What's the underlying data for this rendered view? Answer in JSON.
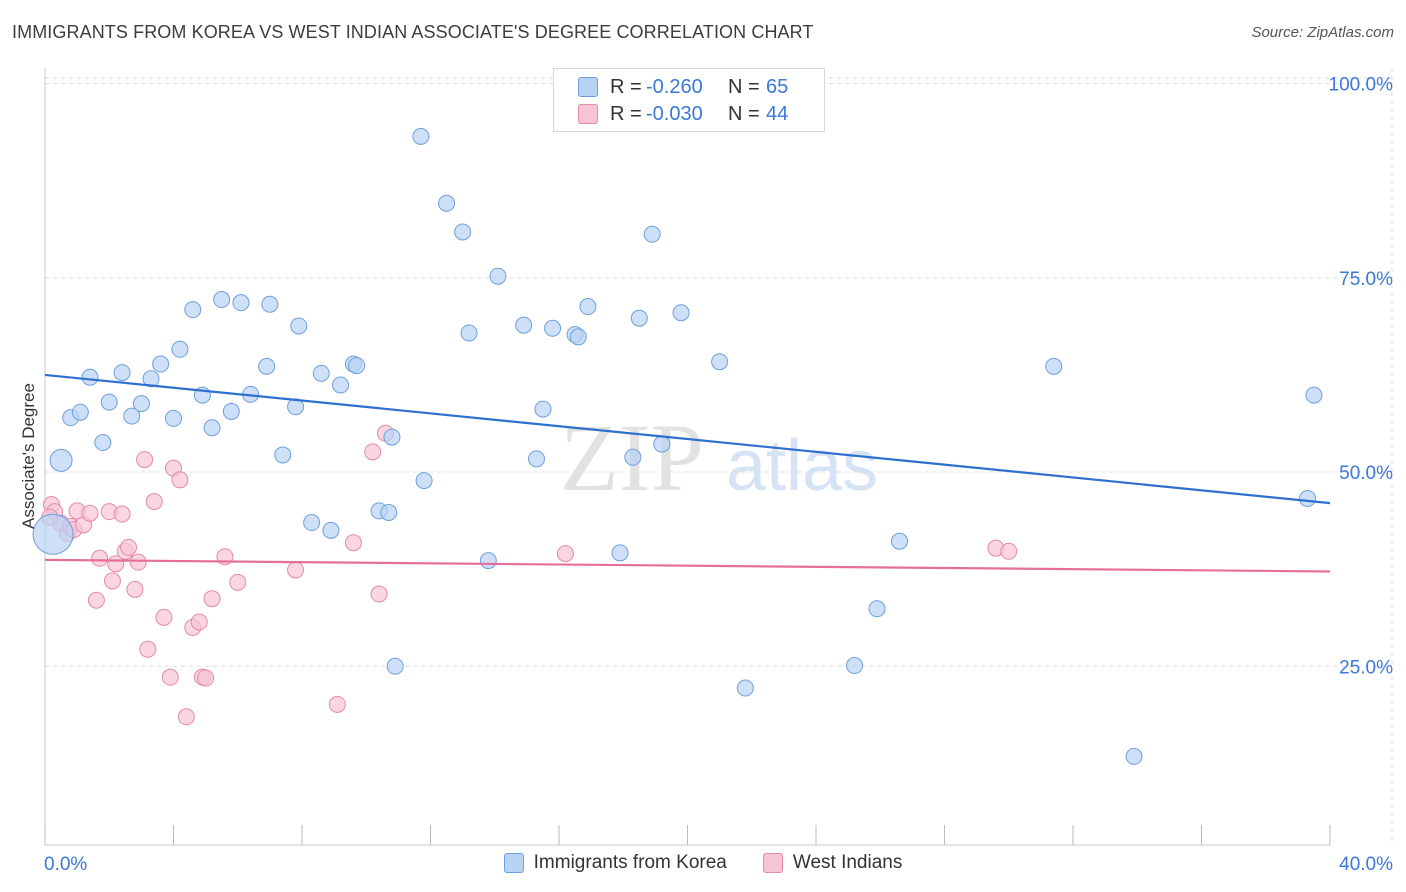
{
  "title": "IMMIGRANTS FROM KOREA VS WEST INDIAN ASSOCIATE'S DEGREE CORRELATION CHART",
  "source": "Source: ZipAtlas.com",
  "watermark": {
    "zip": "ZIP",
    "atlas": "atlas"
  },
  "legend_top": {
    "rows": [
      {
        "r_label": "R =",
        "r_value": "-0.260",
        "n_label": "N =",
        "n_value": "65"
      },
      {
        "r_label": "R =",
        "r_value": "-0.030",
        "n_label": "N =",
        "n_value": "44"
      }
    ]
  },
  "legend_bottom": {
    "series1": "Immigrants from Korea",
    "series2": "West Indians"
  },
  "colors": {
    "blue_fill": "#b8d3f3",
    "blue_stroke": "#6f9fdc",
    "blue_line": "#2f6fd0",
    "pink_fill": "#f6c4d5",
    "pink_stroke": "#e58aa9",
    "pink_line": "#e56f98",
    "axis_text": "#3b78d8",
    "grid": "#dddddd"
  },
  "chart_data": {
    "type": "scatter",
    "title": "IMMIGRANTS FROM KOREA VS WEST INDIAN ASSOCIATE'S DEGREE CORRELATION CHART",
    "xlabel": "",
    "ylabel": "Associate's Degree",
    "xlim": [
      0,
      40
    ],
    "ylim": [
      2,
      102
    ],
    "x_tick_labels": [
      "0.0%",
      "40.0%"
    ],
    "y_ticks": [
      25,
      50,
      75,
      100
    ],
    "y_tick_labels": [
      "25.0%",
      "50.0%",
      "75.0%",
      "100.0%"
    ],
    "grid": true,
    "series": [
      {
        "name": "Immigrants from Korea",
        "R": -0.26,
        "N": 65,
        "trend": {
          "x": [
            0,
            40
          ],
          "y": [
            62.5,
            46.0
          ]
        },
        "points": [
          {
            "x": 0.25,
            "y": 42.0,
            "big": 2
          },
          {
            "x": 0.5,
            "y": 51.5,
            "big": 1
          },
          {
            "x": 0.8,
            "y": 57.0
          },
          {
            "x": 1.1,
            "y": 57.7
          },
          {
            "x": 1.4,
            "y": 62.2
          },
          {
            "x": 1.8,
            "y": 53.8
          },
          {
            "x": 2.0,
            "y": 59.0
          },
          {
            "x": 2.4,
            "y": 62.8
          },
          {
            "x": 2.7,
            "y": 57.2
          },
          {
            "x": 3.0,
            "y": 58.8
          },
          {
            "x": 3.3,
            "y": 62.0
          },
          {
            "x": 3.6,
            "y": 63.9
          },
          {
            "x": 4.0,
            "y": 56.9
          },
          {
            "x": 4.2,
            "y": 65.8
          },
          {
            "x": 4.6,
            "y": 70.9
          },
          {
            "x": 4.9,
            "y": 59.9
          },
          {
            "x": 5.2,
            "y": 55.7
          },
          {
            "x": 5.5,
            "y": 72.2
          },
          {
            "x": 5.8,
            "y": 57.8
          },
          {
            "x": 6.1,
            "y": 71.8
          },
          {
            "x": 6.4,
            "y": 60.0
          },
          {
            "x": 6.9,
            "y": 63.6
          },
          {
            "x": 7.0,
            "y": 71.6
          },
          {
            "x": 7.4,
            "y": 52.2
          },
          {
            "x": 7.8,
            "y": 58.4
          },
          {
            "x": 7.9,
            "y": 68.8
          },
          {
            "x": 8.3,
            "y": 43.5
          },
          {
            "x": 8.6,
            "y": 62.7
          },
          {
            "x": 8.9,
            "y": 42.5
          },
          {
            "x": 9.2,
            "y": 61.2
          },
          {
            "x": 9.6,
            "y": 63.9
          },
          {
            "x": 9.7,
            "y": 63.7
          },
          {
            "x": 10.4,
            "y": 45.0
          },
          {
            "x": 10.7,
            "y": 44.8
          },
          {
            "x": 10.8,
            "y": 54.5
          },
          {
            "x": 10.9,
            "y": 25.0
          },
          {
            "x": 11.8,
            "y": 48.9
          },
          {
            "x": 11.7,
            "y": 93.2
          },
          {
            "x": 12.5,
            "y": 84.6
          },
          {
            "x": 13.0,
            "y": 80.9
          },
          {
            "x": 13.2,
            "y": 67.9
          },
          {
            "x": 13.8,
            "y": 38.6
          },
          {
            "x": 14.1,
            "y": 75.2
          },
          {
            "x": 14.9,
            "y": 68.9
          },
          {
            "x": 15.3,
            "y": 51.7
          },
          {
            "x": 15.5,
            "y": 58.1
          },
          {
            "x": 15.8,
            "y": 68.5
          },
          {
            "x": 16.5,
            "y": 67.7
          },
          {
            "x": 16.6,
            "y": 67.4
          },
          {
            "x": 16.9,
            "y": 71.3
          },
          {
            "x": 17.9,
            "y": 39.6
          },
          {
            "x": 18.3,
            "y": 51.9
          },
          {
            "x": 18.5,
            "y": 69.8
          },
          {
            "x": 18.9,
            "y": 80.6
          },
          {
            "x": 19.2,
            "y": 53.6
          },
          {
            "x": 19.8,
            "y": 70.5
          },
          {
            "x": 21.0,
            "y": 64.2
          },
          {
            "x": 21.8,
            "y": 22.2
          },
          {
            "x": 25.2,
            "y": 25.1
          },
          {
            "x": 25.9,
            "y": 32.4
          },
          {
            "x": 26.6,
            "y": 41.1
          },
          {
            "x": 31.4,
            "y": 63.6
          },
          {
            "x": 33.9,
            "y": 13.4
          },
          {
            "x": 39.3,
            "y": 46.6
          },
          {
            "x": 39.5,
            "y": 59.9
          }
        ]
      },
      {
        "name": "West Indians",
        "R": -0.03,
        "N": 44,
        "trend": {
          "x": [
            0,
            40
          ],
          "y": [
            38.7,
            37.2
          ]
        },
        "points": [
          {
            "x": 0.2,
            "y": 45.8
          },
          {
            "x": 0.3,
            "y": 44.9
          },
          {
            "x": 0.5,
            "y": 43.4
          },
          {
            "x": 0.7,
            "y": 42.1
          },
          {
            "x": 0.8,
            "y": 43.0
          },
          {
            "x": 0.9,
            "y": 42.6
          },
          {
            "x": 1.0,
            "y": 45.0
          },
          {
            "x": 1.2,
            "y": 43.2
          },
          {
            "x": 1.4,
            "y": 44.7
          },
          {
            "x": 1.6,
            "y": 33.5
          },
          {
            "x": 1.7,
            "y": 38.9
          },
          {
            "x": 2.0,
            "y": 44.9
          },
          {
            "x": 2.1,
            "y": 36.0
          },
          {
            "x": 2.2,
            "y": 38.2
          },
          {
            "x": 2.4,
            "y": 44.6
          },
          {
            "x": 2.5,
            "y": 39.8
          },
          {
            "x": 2.6,
            "y": 40.3
          },
          {
            "x": 2.8,
            "y": 34.9
          },
          {
            "x": 2.9,
            "y": 38.4
          },
          {
            "x": 3.1,
            "y": 51.6
          },
          {
            "x": 3.2,
            "y": 27.2
          },
          {
            "x": 3.4,
            "y": 46.2
          },
          {
            "x": 3.7,
            "y": 31.3
          },
          {
            "x": 3.9,
            "y": 23.6
          },
          {
            "x": 4.0,
            "y": 50.5
          },
          {
            "x": 4.2,
            "y": 49.0
          },
          {
            "x": 4.4,
            "y": 18.5
          },
          {
            "x": 4.6,
            "y": 30.0
          },
          {
            "x": 4.8,
            "y": 30.7
          },
          {
            "x": 4.9,
            "y": 23.6
          },
          {
            "x": 5.0,
            "y": 23.5
          },
          {
            "x": 5.2,
            "y": 33.7
          },
          {
            "x": 5.6,
            "y": 39.1
          },
          {
            "x": 6.0,
            "y": 35.8
          },
          {
            "x": 7.8,
            "y": 37.4
          },
          {
            "x": 9.1,
            "y": 20.1
          },
          {
            "x": 9.6,
            "y": 40.9
          },
          {
            "x": 10.2,
            "y": 52.6
          },
          {
            "x": 10.4,
            "y": 34.3
          },
          {
            "x": 10.6,
            "y": 55.0
          },
          {
            "x": 16.2,
            "y": 39.5
          },
          {
            "x": 29.6,
            "y": 40.2
          },
          {
            "x": 30.0,
            "y": 39.8
          },
          {
            "x": 0.15,
            "y": 44.2
          }
        ]
      }
    ]
  }
}
